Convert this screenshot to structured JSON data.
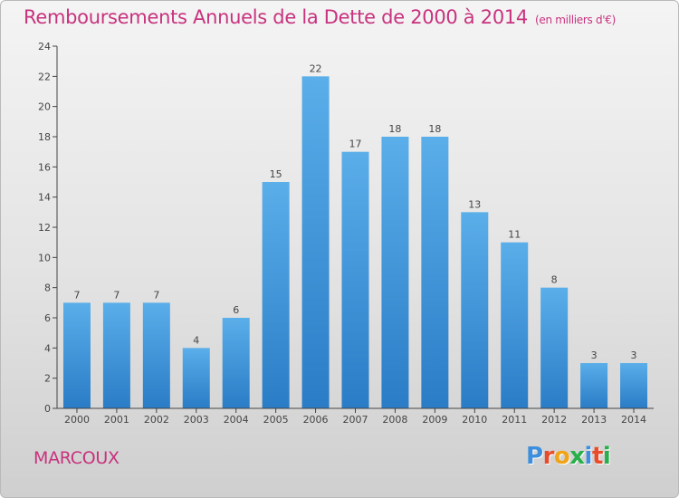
{
  "header": {
    "title": "Remboursements Annuels de la Dette de 2000 à 2014",
    "unit": "(en milliers d'€)"
  },
  "footer": {
    "place": "MARCOUX",
    "logo": "Proxiti",
    "logo_colors": [
      "#3d8fdd",
      "#e84c2b",
      "#f0a417",
      "#27b04a",
      "#3d8fdd",
      "#e84c2b",
      "#27b04a"
    ]
  },
  "chart_data": {
    "type": "bar",
    "title": "Remboursements Annuels de la Dette de 2000 à 2014",
    "unit_label": "(en milliers d'€)",
    "xlabel": "",
    "ylabel": "",
    "categories": [
      "2000",
      "2001",
      "2002",
      "2003",
      "2004",
      "2005",
      "2006",
      "2007",
      "2008",
      "2009",
      "2010",
      "2011",
      "2012",
      "2013",
      "2014"
    ],
    "values": [
      7,
      7,
      7,
      4,
      6,
      15,
      22,
      17,
      18,
      18,
      13,
      11,
      8,
      3,
      3
    ],
    "ylim": [
      0,
      24
    ],
    "yticks": [
      0,
      2,
      4,
      6,
      8,
      10,
      12,
      14,
      16,
      18,
      20,
      22,
      24
    ],
    "grid": false,
    "legend": "none",
    "bar_color_top": "#5aaee9",
    "bar_color_bottom": "#2a7cc6",
    "axis_color": "#444444"
  }
}
